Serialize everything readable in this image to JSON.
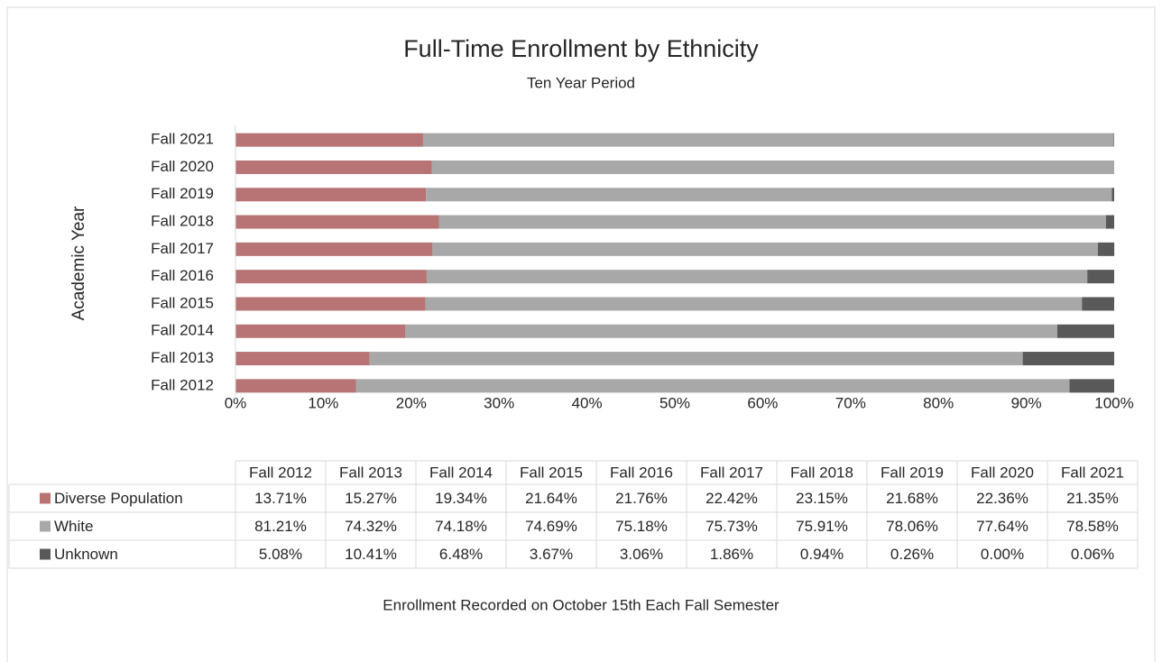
{
  "chart_data": {
    "type": "stacked-barh",
    "title": "Full-Time Enrollment by Ethnicity",
    "subtitle": "Ten Year Period",
    "ylabel": "Academic Year",
    "footer": "Enrollment Recorded on October 15th Each Fall Semester",
    "categories": [
      "Fall 2012",
      "Fall 2013",
      "Fall 2014",
      "Fall 2015",
      "Fall 2016",
      "Fall 2017",
      "Fall 2018",
      "Fall 2019",
      "Fall 2020",
      "Fall 2021"
    ],
    "series": [
      {
        "name": "Diverse Population",
        "color": "#b87474",
        "values": [
          13.71,
          15.27,
          19.34,
          21.64,
          21.76,
          22.42,
          23.15,
          21.68,
          22.36,
          21.35
        ],
        "value_labels": [
          "13.71%",
          "15.27%",
          "19.34%",
          "21.64%",
          "21.76%",
          "22.42%",
          "23.15%",
          "21.68%",
          "22.36%",
          "21.35%"
        ]
      },
      {
        "name": "White",
        "color": "#a8a8a8",
        "values": [
          81.21,
          74.32,
          74.18,
          74.69,
          75.18,
          75.73,
          75.91,
          78.06,
          77.64,
          78.58
        ],
        "value_labels": [
          "81.21%",
          "74.32%",
          "74.18%",
          "74.69%",
          "75.18%",
          "75.73%",
          "75.91%",
          "78.06%",
          "77.64%",
          "78.58%"
        ]
      },
      {
        "name": "Unknown",
        "color": "#595959",
        "values": [
          5.08,
          10.41,
          6.48,
          3.67,
          3.06,
          1.86,
          0.94,
          0.26,
          0.0,
          0.06
        ],
        "value_labels": [
          "5.08%",
          "10.41%",
          "6.48%",
          "3.67%",
          "3.06%",
          "1.86%",
          "0.94%",
          "0.26%",
          "0.00%",
          "0.06%"
        ]
      }
    ],
    "xlim": [
      0,
      100
    ],
    "xticks": [
      {
        "value": 0,
        "label": "0%"
      },
      {
        "value": 10,
        "label": "10%"
      },
      {
        "value": 20,
        "label": "20%"
      },
      {
        "value": 30,
        "label": "30%"
      },
      {
        "value": 40,
        "label": "40%"
      },
      {
        "value": 50,
        "label": "50%"
      },
      {
        "value": 60,
        "label": "60%"
      },
      {
        "value": 70,
        "label": "70%"
      },
      {
        "value": 80,
        "label": "80%"
      },
      {
        "value": 90,
        "label": "90%"
      },
      {
        "value": 100,
        "label": "100%"
      }
    ],
    "grid": false,
    "data_table": true
  }
}
